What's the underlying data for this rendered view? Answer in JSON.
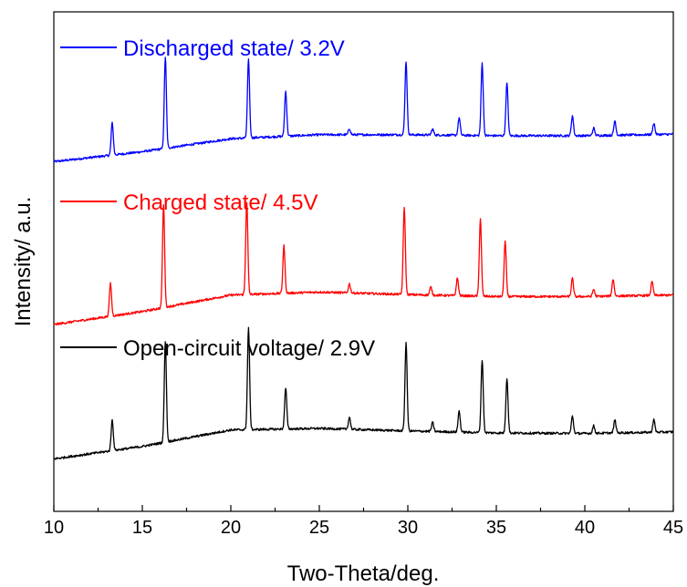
{
  "chart_data": {
    "type": "line",
    "title": "",
    "xlabel": "Two-Theta/deg.",
    "ylabel": "Intensity/ a.u.",
    "xlim": [
      10,
      45
    ],
    "xticks": [
      10,
      15,
      20,
      25,
      30,
      35,
      40,
      45
    ],
    "x_minor_step": 2.5,
    "y_ticks_shown": false,
    "grid": false,
    "legend_placement": "inline-above-each-trace",
    "ylim": [
      0,
      100
    ],
    "series": [
      {
        "name": "Discharged state/ 3.2V",
        "color": "#0000ff",
        "baseline_points": [
          [
            10,
            70.0
          ],
          [
            15,
            72.0
          ],
          [
            20,
            74.6
          ],
          [
            25,
            75.4
          ],
          [
            30,
            75.4
          ],
          [
            35,
            75.2
          ],
          [
            40,
            75.2
          ],
          [
            45,
            75.5
          ]
        ],
        "peaks": [
          [
            13.3,
            6.5
          ],
          [
            16.3,
            18.3
          ],
          [
            21.0,
            15.6
          ],
          [
            23.1,
            9.0
          ],
          [
            26.7,
            1.2
          ],
          [
            29.9,
            14.7
          ],
          [
            31.4,
            1.2
          ],
          [
            32.9,
            3.5
          ],
          [
            34.2,
            14.5
          ],
          [
            35.6,
            10.5
          ],
          [
            39.3,
            4.0
          ],
          [
            40.5,
            1.5
          ],
          [
            41.7,
            2.9
          ],
          [
            43.9,
            2.3
          ]
        ]
      },
      {
        "name": "Charged state/ 4.5V",
        "color": "#ff0000",
        "baseline_points": [
          [
            10,
            37.4
          ],
          [
            15,
            40.0
          ],
          [
            20,
            43.3
          ],
          [
            25,
            43.9
          ],
          [
            30,
            43.4
          ],
          [
            35,
            43.0
          ],
          [
            40,
            43.0
          ],
          [
            45,
            43.3
          ]
        ],
        "peaks": [
          [
            13.2,
            6.6
          ],
          [
            16.2,
            20.6
          ],
          [
            20.9,
            18.5
          ],
          [
            23.0,
            9.5
          ],
          [
            26.7,
            1.8
          ],
          [
            29.8,
            17.5
          ],
          [
            31.3,
            1.6
          ],
          [
            32.8,
            3.5
          ],
          [
            34.1,
            15.5
          ],
          [
            35.5,
            11.0
          ],
          [
            39.3,
            3.6
          ],
          [
            40.5,
            1.4
          ],
          [
            41.6,
            3.4
          ],
          [
            43.8,
            2.7
          ]
        ]
      },
      {
        "name": "Open-circuit voltage/ 2.9V",
        "color": "#000000",
        "baseline_points": [
          [
            10,
            10.5
          ],
          [
            15,
            13.0
          ],
          [
            20,
            16.3
          ],
          [
            25,
            16.6
          ],
          [
            30,
            16.1
          ],
          [
            35,
            15.7
          ],
          [
            40,
            15.6
          ],
          [
            45,
            15.9
          ]
        ],
        "peaks": [
          [
            13.3,
            6.2
          ],
          [
            16.3,
            20.3
          ],
          [
            21.0,
            20.4
          ],
          [
            23.1,
            8.2
          ],
          [
            26.7,
            2.4
          ],
          [
            29.9,
            17.7
          ],
          [
            31.4,
            1.8
          ],
          [
            32.9,
            4.2
          ],
          [
            34.2,
            14.6
          ],
          [
            35.6,
            11.0
          ],
          [
            39.3,
            3.4
          ],
          [
            40.5,
            1.5
          ],
          [
            41.7,
            2.6
          ],
          [
            43.9,
            2.5
          ]
        ]
      }
    ]
  }
}
